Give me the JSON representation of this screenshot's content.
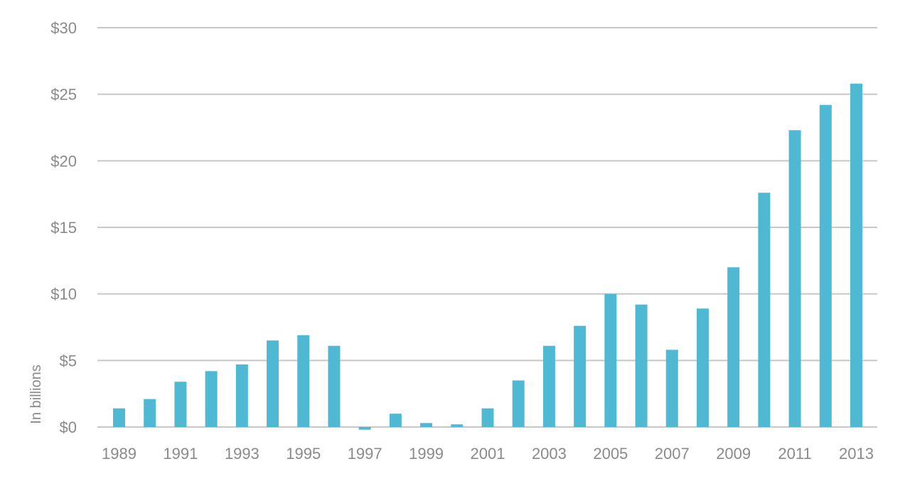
{
  "chart_data": {
    "type": "bar",
    "title": "",
    "xlabel": "",
    "ylabel": "In billions",
    "categories": [
      "1989",
      "1990",
      "1991",
      "1992",
      "1993",
      "1994",
      "1995",
      "1996",
      "1997",
      "1998",
      "1999",
      "2000",
      "2001",
      "2002",
      "2003",
      "2004",
      "2005",
      "2006",
      "2007",
      "2008",
      "2009",
      "2010",
      "2011",
      "2012",
      "2013"
    ],
    "x_tick_labels": [
      "1989",
      "",
      "1991",
      "",
      "1993",
      "",
      "1995",
      "",
      "1997",
      "",
      "1999",
      "",
      "2001",
      "",
      "2003",
      "",
      "2005",
      "",
      "2007",
      "",
      "2009",
      "",
      "2011",
      "",
      "2013"
    ],
    "values": [
      1.4,
      2.1,
      3.4,
      4.2,
      4.7,
      6.5,
      6.9,
      6.1,
      -0.2,
      1.0,
      0.3,
      0.2,
      1.4,
      3.5,
      6.1,
      7.6,
      10.0,
      9.2,
      5.8,
      8.9,
      12.0,
      17.6,
      22.3,
      24.2,
      25.8
    ],
    "ylim": [
      0,
      30
    ],
    "y_ticks": [
      0,
      5,
      10,
      15,
      20,
      25,
      30
    ],
    "y_tick_labels": [
      "$0",
      "$5",
      "$10",
      "$15",
      "$20",
      "$25",
      "$30"
    ],
    "bar_color": "#4fb9d3",
    "grid": true
  }
}
